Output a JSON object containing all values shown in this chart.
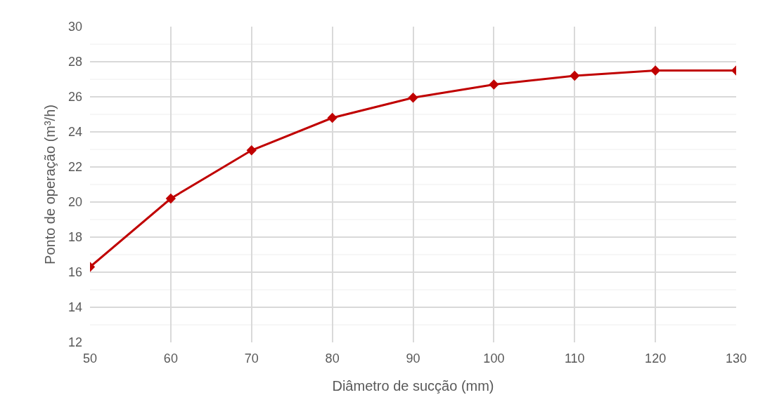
{
  "chart_data": {
    "type": "line",
    "xlabel": "Diâmetro de sucção (mm)",
    "ylabel": "Ponto de operação (m³/h)",
    "x": [
      50,
      60,
      70,
      80,
      90,
      100,
      110,
      120,
      130
    ],
    "series": [
      {
        "color": "#c00000",
        "values": [
          16.3,
          20.2,
          22.95,
          24.8,
          25.95,
          26.7,
          27.2,
          27.5,
          27.5
        ]
      }
    ],
    "xlim": [
      50,
      130
    ],
    "xticks": [
      50,
      60,
      70,
      80,
      90,
      100,
      110,
      120,
      130
    ],
    "ylim": [
      12,
      30
    ],
    "yticks": [
      12,
      14,
      16,
      18,
      20,
      22,
      24,
      26,
      28,
      30
    ],
    "grid": true,
    "marker": "diamond",
    "line_style": "solid"
  }
}
